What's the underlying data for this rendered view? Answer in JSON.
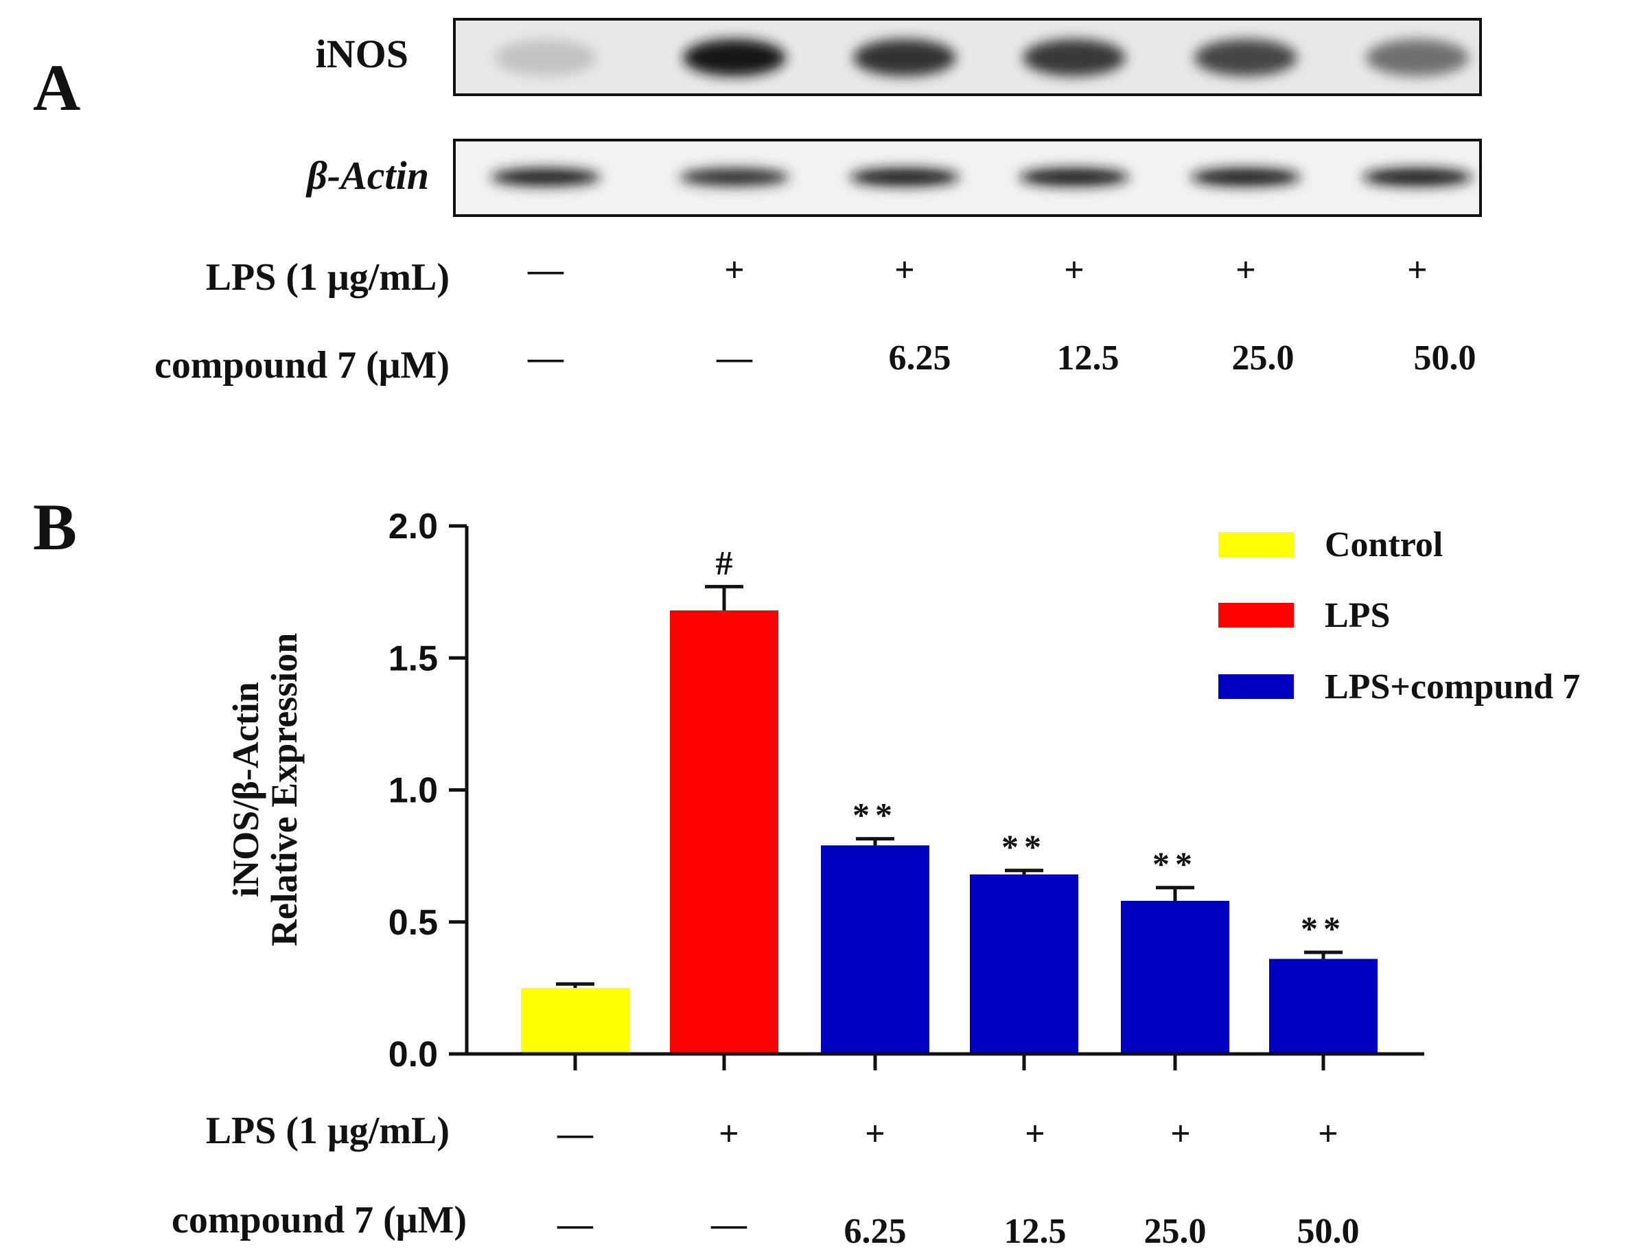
{
  "panel_a": {
    "letter": "A",
    "blots": [
      {
        "label": "iNOS",
        "band_intensity": [
          0.18,
          0.95,
          0.82,
          0.8,
          0.74,
          0.55
        ]
      },
      {
        "label": "β-Actin",
        "band_intensity": [
          0.92,
          0.86,
          0.94,
          0.94,
          0.95,
          0.96
        ]
      }
    ],
    "conditions": [
      {
        "label": "LPS (1 μg/mL)",
        "values": [
          "—",
          "+",
          "+",
          "+",
          "+",
          "+"
        ]
      },
      {
        "label": "compound 7 (μM)",
        "values": [
          "—",
          "—",
          "6.25",
          "12.5",
          "25.0",
          "50.0"
        ]
      }
    ]
  },
  "panel_b": {
    "letter": "B",
    "conditions": [
      {
        "label": "LPS (1 μg/mL)",
        "values": [
          "—",
          "+",
          "+",
          "+",
          "+",
          "+"
        ]
      },
      {
        "label": "compound 7 (μM)",
        "values": [
          "—",
          "—",
          "6.25",
          "12.5",
          "25.0",
          "50.0"
        ]
      }
    ]
  },
  "chart_data": {
    "type": "bar",
    "title": "",
    "xlabel": "",
    "ylabel_lines": [
      "iNOS/β-Actin",
      "Relative Expression"
    ],
    "ylim": [
      0,
      2.0
    ],
    "yticks": [
      0.0,
      0.5,
      1.0,
      1.5,
      2.0
    ],
    "ytick_labels": [
      "0.0",
      "0.5",
      "1.0",
      "1.5",
      "2.0"
    ],
    "categories": [
      "Control",
      "LPS",
      "LPS+6.25",
      "LPS+12.5",
      "LPS+25.0",
      "LPS+50.0"
    ],
    "values": [
      0.25,
      1.68,
      0.79,
      0.68,
      0.58,
      0.36
    ],
    "errors": [
      0.015,
      0.09,
      0.025,
      0.015,
      0.05,
      0.025
    ],
    "groups": [
      "Control",
      "LPS",
      "LPS+compund 7",
      "LPS+compund 7",
      "LPS+compund 7",
      "LPS+compund 7"
    ],
    "annotations": [
      "",
      "#",
      "**",
      "**",
      "**",
      "**"
    ],
    "legend": [
      {
        "label": "Control",
        "color": "#ffff00"
      },
      {
        "label": "LPS",
        "color": "#ff0000"
      },
      {
        "label": "LPS+compund 7",
        "color": "#0000c0"
      }
    ],
    "legend_position": "top-right",
    "grid": false
  }
}
